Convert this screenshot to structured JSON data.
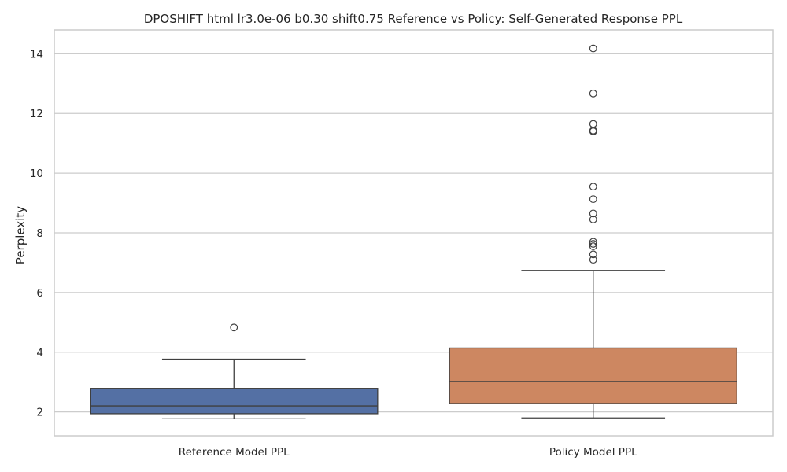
{
  "chart_data": {
    "type": "box",
    "title": "DPOSHIFT html lr3.0e-06 b0.30 shift0.75 Reference vs Policy: Self-Generated Response PPL",
    "xlabel": "",
    "ylabel": "Perplexity",
    "ylim": [
      1.2,
      14.8
    ],
    "yticks": [
      2,
      4,
      6,
      8,
      10,
      12,
      14
    ],
    "grid": true,
    "categories": [
      "Reference Model PPL",
      "Policy Model PPL"
    ],
    "boxes": [
      {
        "category": "Reference Model PPL",
        "color": "#5470a4",
        "whisker_low": 1.77,
        "q1": 1.94,
        "median": 2.2,
        "q3": 2.79,
        "whisker_high": 3.77,
        "outliers": [
          4.83
        ]
      },
      {
        "category": "Policy Model PPL",
        "color": "#cd8761",
        "whisker_low": 1.8,
        "q1": 2.28,
        "median": 3.02,
        "q3": 4.14,
        "whisker_high": 6.74,
        "outliers": [
          7.1,
          7.28,
          7.55,
          7.63,
          7.7,
          8.45,
          8.65,
          9.13,
          9.55,
          11.4,
          11.43,
          11.65,
          12.67,
          14.18
        ]
      }
    ]
  }
}
